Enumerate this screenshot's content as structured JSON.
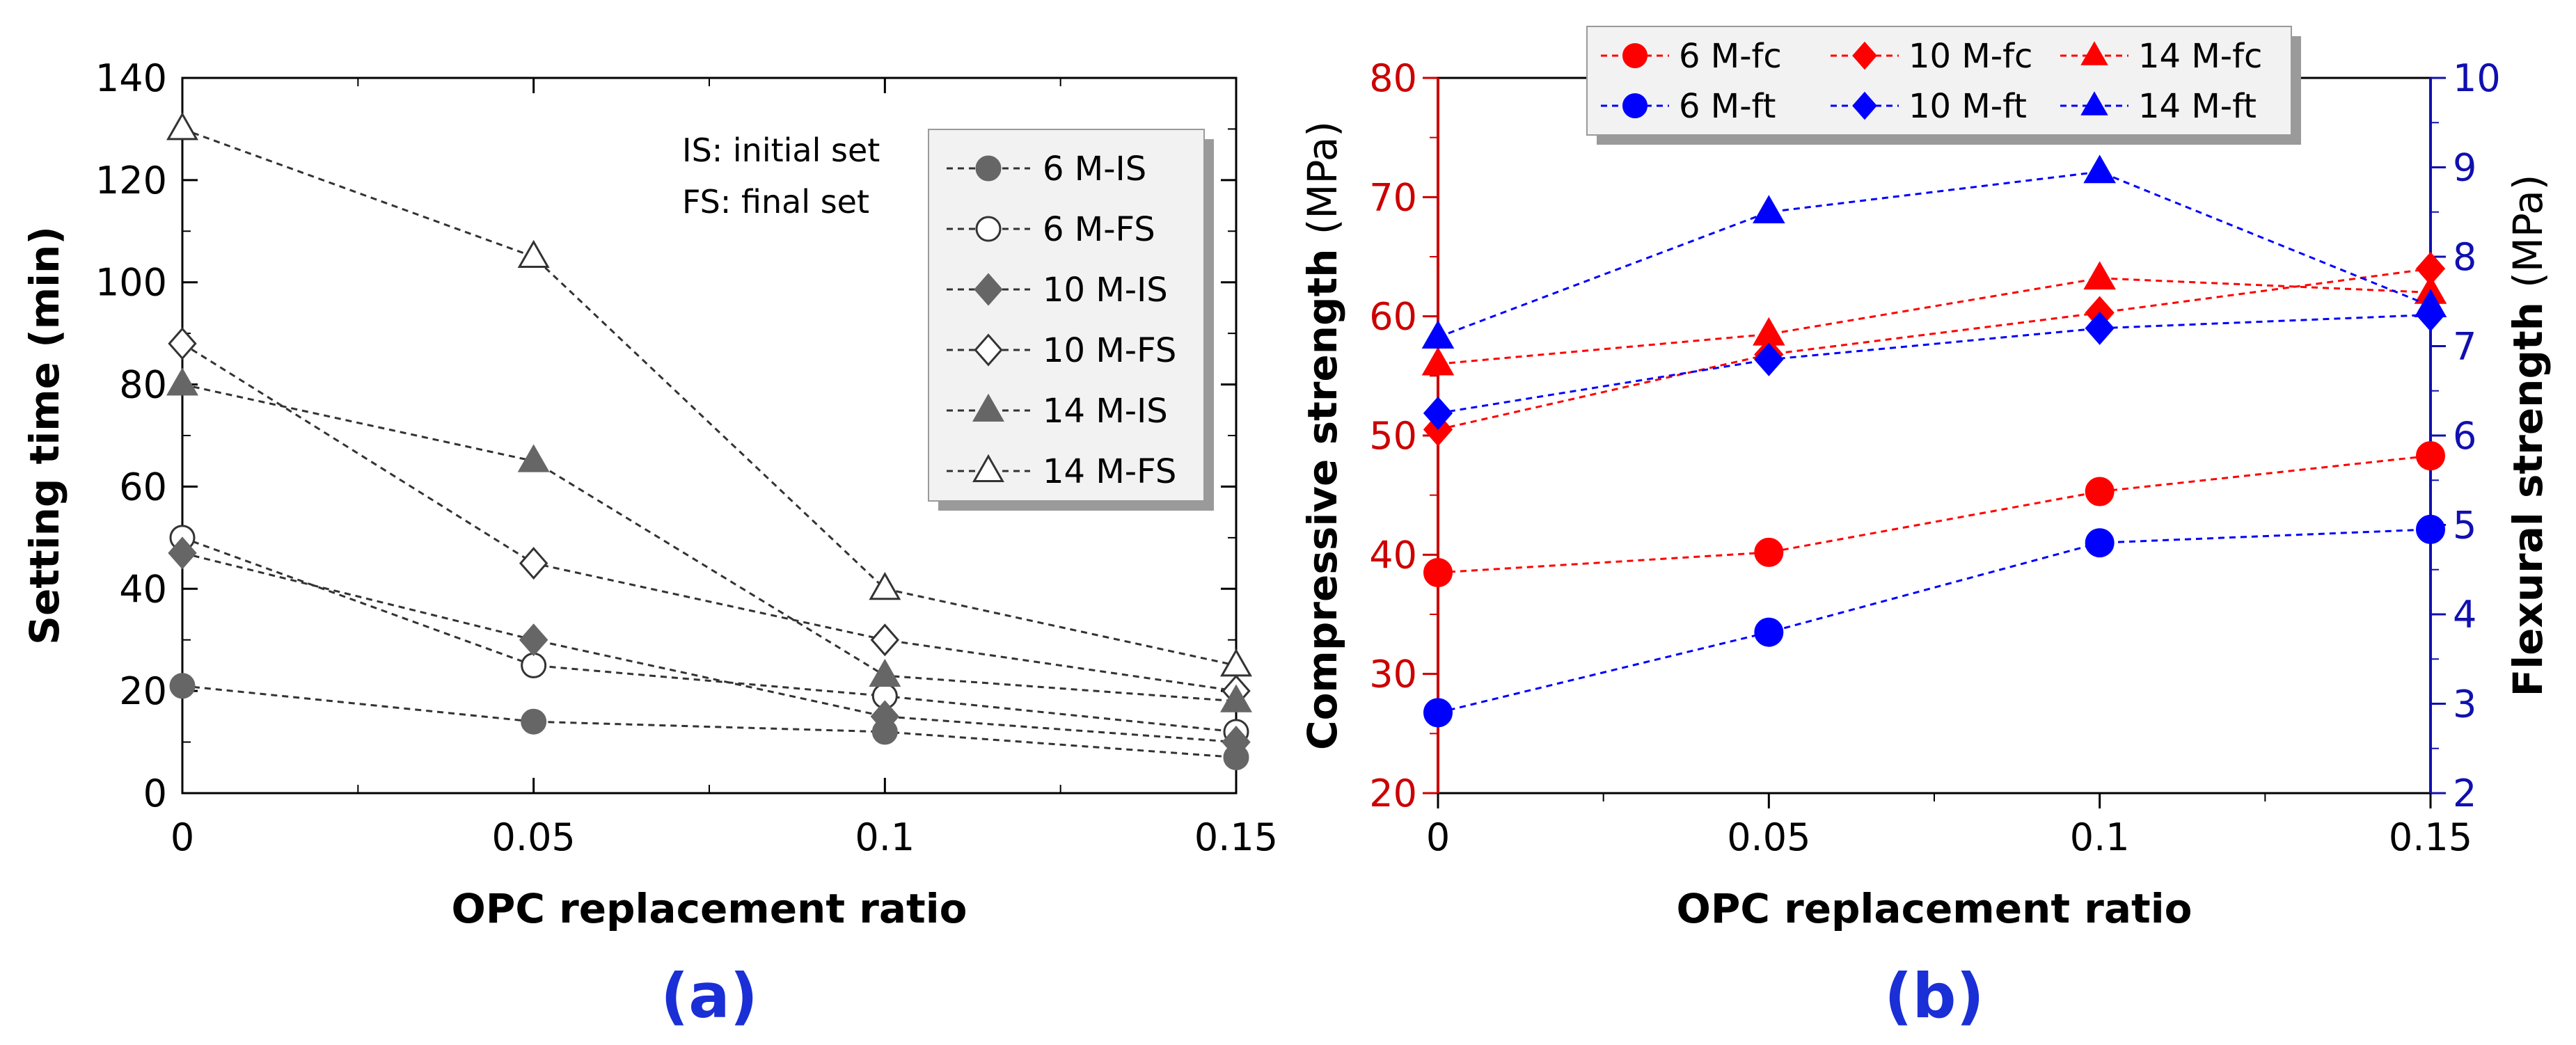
{
  "chart_data": [
    {
      "type": "line",
      "panel_label": "(a)",
      "xlabel": "OPC replacement ratio",
      "ylabel": "Setting time (min)",
      "x": [
        0,
        0.05,
        0.1,
        0.15
      ],
      "x_ticks": [
        "0",
        "0.05",
        "0.1",
        "0.15"
      ],
      "xlim": [
        0,
        0.15
      ],
      "ylim": [
        0,
        140
      ],
      "y_ticks": [
        "0",
        "20",
        "40",
        "60",
        "80",
        "100",
        "120",
        "140"
      ],
      "notes": [
        "IS: initial set",
        "FS: final set"
      ],
      "legend_position": "top-right",
      "series": [
        {
          "name": "6 M-IS",
          "values": [
            21,
            14,
            12,
            7
          ],
          "marker": "circle-filled",
          "color": "#666666"
        },
        {
          "name": "6 M-FS",
          "values": [
            50,
            25,
            19,
            12
          ],
          "marker": "circle-open",
          "color": "#333333"
        },
        {
          "name": "10 M-IS",
          "values": [
            47,
            30,
            15,
            10
          ],
          "marker": "diamond-filled",
          "color": "#666666"
        },
        {
          "name": "10 M-FS",
          "values": [
            88,
            45,
            30,
            20
          ],
          "marker": "diamond-open",
          "color": "#333333"
        },
        {
          "name": "14 M-IS",
          "values": [
            80,
            65,
            23,
            18
          ],
          "marker": "triangle-filled",
          "color": "#666666"
        },
        {
          "name": "14 M-FS",
          "values": [
            130,
            105,
            40,
            25
          ],
          "marker": "triangle-open",
          "color": "#333333"
        }
      ]
    },
    {
      "type": "line",
      "panel_label": "(b)",
      "xlabel": "OPC replacement ratio",
      "ylabel": "Compressive strength (MPa)",
      "y2label": "Flexural strength (MPa)",
      "x": [
        0,
        0.05,
        0.1,
        0.15
      ],
      "x_ticks": [
        "0",
        "0.05",
        "0.1",
        "0.15"
      ],
      "xlim": [
        0,
        0.15
      ],
      "ylim": [
        20,
        80
      ],
      "y_ticks": [
        "20",
        "30",
        "40",
        "50",
        "60",
        "70",
        "80"
      ],
      "y2lim": [
        2,
        10
      ],
      "y2_ticks": [
        "2",
        "3",
        "4",
        "5",
        "6",
        "7",
        "8",
        "9",
        "10"
      ],
      "legend_position": "top",
      "colors": {
        "left_axis": "#cc0000",
        "right_axis": "#1010b0",
        "fc": "#ff0000",
        "ft": "#0000ff"
      },
      "series": [
        {
          "name": "6 M-fc",
          "axis": "left",
          "values": [
            38.5,
            40.2,
            45.3,
            48.3
          ],
          "marker": "circle",
          "color": "#ff0000"
        },
        {
          "name": "10 M-fc",
          "axis": "left",
          "values": [
            50.5,
            56.8,
            60.3,
            64.0
          ],
          "marker": "diamond",
          "color": "#ff0000"
        },
        {
          "name": "14 M-fc",
          "axis": "left",
          "values": [
            56.0,
            58.5,
            63.2,
            62.0
          ],
          "marker": "triangle",
          "color": "#ff0000"
        },
        {
          "name": "6 M-ft",
          "axis": "right",
          "values": [
            2.9,
            3.8,
            4.8,
            4.95
          ],
          "marker": "circle",
          "color": "#0000ff"
        },
        {
          "name": "10 M-ft",
          "axis": "right",
          "values": [
            6.25,
            6.85,
            7.2,
            7.35
          ],
          "marker": "diamond",
          "color": "#0000ff"
        },
        {
          "name": "14 M-ft",
          "axis": "right",
          "values": [
            7.1,
            8.5,
            8.95,
            7.45
          ],
          "marker": "triangle",
          "color": "#0000ff"
        }
      ]
    }
  ]
}
